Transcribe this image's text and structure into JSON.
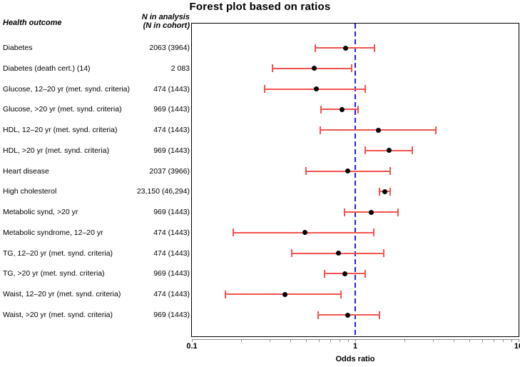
{
  "title": "Forest plot based on ratios",
  "table": {
    "outcome_header": "Health outcome",
    "n_header_line1": "N in analysis",
    "n_header_line2": "(N in cohort)"
  },
  "axis": {
    "tick_labels": [
      "0.1",
      "1",
      "10"
    ],
    "label": "Odds ratio"
  },
  "colors": {
    "ci_bar": "#f25350",
    "point": "#000000",
    "reference_line": "#2323cc",
    "axis": "#8c8c8c"
  },
  "chart_data": {
    "type": "forest",
    "title": "Forest plot based on ratios",
    "xlabel": "Odds ratio",
    "x_scale": "log",
    "xlim": [
      0.1,
      10
    ],
    "reference_line": 1.0,
    "tick_values": [
      0.1,
      0.2,
      0.3,
      0.4,
      0.5,
      0.6,
      0.7,
      0.8,
      0.9,
      1,
      2,
      3,
      4,
      5,
      6,
      7,
      8,
      9,
      10
    ],
    "legend": "none",
    "rows": [
      {
        "label": "Diabetes",
        "n": "2063 (3964)",
        "or": 0.87,
        "ci_low": 0.57,
        "ci_high": 1.31
      },
      {
        "label": "Diabetes (death cert.) (14)",
        "n": "2 083",
        "or": 0.56,
        "ci_low": 0.31,
        "ci_high": 0.95
      },
      {
        "label": "Glucose, 12–20 yr (met. synd. criteria)",
        "n": "474 (1443)",
        "or": 0.58,
        "ci_low": 0.28,
        "ci_high": 1.15
      },
      {
        "label": "Glucose, >20 yr (met. synd. criteria)",
        "n": "969 (1443)",
        "or": 0.83,
        "ci_low": 0.62,
        "ci_high": 1.04
      },
      {
        "label": "HDL, 12–20 yr (met. synd. criteria)",
        "n": "474 (1443)",
        "or": 1.38,
        "ci_low": 0.61,
        "ci_high": 3.1
      },
      {
        "label": "HDL, >20 yr (met. synd. criteria)",
        "n": "969 (1443)",
        "or": 1.62,
        "ci_low": 1.15,
        "ci_high": 2.24
      },
      {
        "label": "Heart disease",
        "n": "2037 (3966)",
        "or": 0.9,
        "ci_low": 0.5,
        "ci_high": 1.63
      },
      {
        "label": "High cholesterol",
        "n": "23,150 (46,294)",
        "or": 1.52,
        "ci_low": 1.41,
        "ci_high": 1.64
      },
      {
        "label": "Metabolic synd, >20 yr",
        "n": "969 (1443)",
        "or": 1.25,
        "ci_low": 0.86,
        "ci_high": 1.82
      },
      {
        "label": "Metabolic syndrome, 12–20 yr",
        "n": "474 (1443)",
        "or": 0.49,
        "ci_low": 0.18,
        "ci_high": 1.3
      },
      {
        "label": "TG, 12–20 yr (met. synd. criteria)",
        "n": "474 (1443)",
        "or": 0.79,
        "ci_low": 0.41,
        "ci_high": 1.5
      },
      {
        "label": "TG, >20 yr (met. synd. criteria)",
        "n": "969 (1443)",
        "or": 0.86,
        "ci_low": 0.65,
        "ci_high": 1.15
      },
      {
        "label": "Waist, 12–20 yr (met. synd. criteria)",
        "n": "474 (1443)",
        "or": 0.37,
        "ci_low": 0.16,
        "ci_high": 0.82
      },
      {
        "label": "Waist, >20 yr (met. synd. criteria)",
        "n": "969 (1443)",
        "or": 0.9,
        "ci_low": 0.59,
        "ci_high": 1.41
      }
    ]
  }
}
